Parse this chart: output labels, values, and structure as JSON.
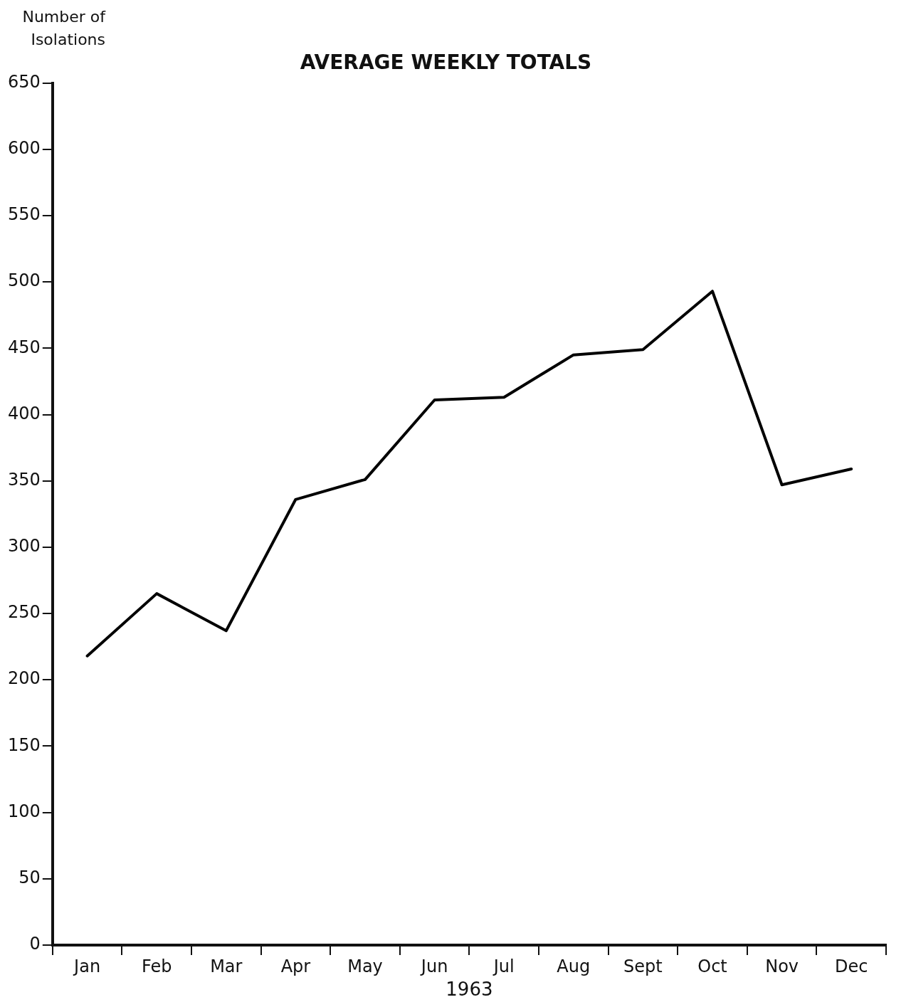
{
  "chart_data": {
    "type": "line",
    "title": "AVERAGE WEEKLY TOTALS",
    "ylabel": "Number of Isolations",
    "xlabel": "1963",
    "categories": [
      "Jan",
      "Feb",
      "Mar",
      "Apr",
      "May",
      "Jun",
      "Jul",
      "Aug",
      "Sept",
      "Oct",
      "Nov",
      "Dec"
    ],
    "series": [
      {
        "color": "#000000",
        "values": [
          218,
          265,
          237,
          336,
          351,
          411,
          413,
          445,
          449,
          493,
          347,
          359
        ]
      }
    ],
    "ylim": [
      0,
      650
    ],
    "yticks": [
      0,
      50,
      100,
      150,
      200,
      250,
      300,
      350,
      400,
      450,
      500,
      550,
      600,
      650
    ],
    "grid": false,
    "legend": false,
    "marker": "none",
    "line_style": "solid"
  }
}
